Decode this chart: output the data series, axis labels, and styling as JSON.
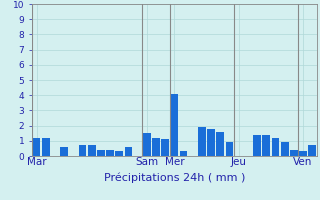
{
  "values": [
    1.2,
    1.2,
    0.0,
    0.6,
    0.0,
    0.7,
    0.7,
    0.4,
    0.4,
    0.3,
    0.6,
    0.0,
    1.5,
    1.2,
    1.1,
    4.1,
    0.3,
    0.0,
    1.9,
    1.8,
    1.6,
    0.9,
    0.0,
    0.0,
    1.4,
    1.4,
    1.2,
    0.9,
    0.4,
    0.3,
    0.7
  ],
  "day_labels": [
    "Mar",
    "Sam",
    "Mer",
    "Jeu",
    "Ven"
  ],
  "day_tick_positions": [
    0,
    12,
    15,
    22,
    29
  ],
  "day_vline_positions": [
    0,
    12,
    15,
    22,
    29
  ],
  "bar_color": "#1a6ed8",
  "bg_color": "#d4f0f0",
  "grid_color": "#b0d8d8",
  "axis_label_color": "#2222aa",
  "tick_color": "#2222aa",
  "xlabel": "Précipitations 24h ( mm )",
  "ylim": [
    0,
    10
  ],
  "yticks": [
    0,
    1,
    2,
    3,
    4,
    5,
    6,
    7,
    8,
    9,
    10
  ],
  "vline_color": "#888888",
  "xlabel_fontsize": 8,
  "ytick_fontsize": 6.5,
  "xtick_fontsize": 7.5
}
